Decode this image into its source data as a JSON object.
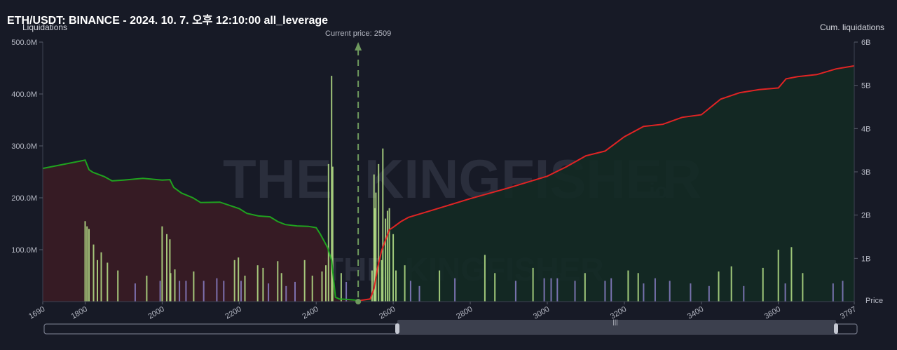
{
  "title": "ETH/USDT: BINANCE - 2024. 10. 7. 오후 12:10:00 all_leverage",
  "chart_data": {
    "type": "bar",
    "title": "ETH/USDT: BINANCE - 2024. 10. 7. 오후 12:10:00 all_leverage",
    "ylabel_left": "Liquidations",
    "ylabel_right": "Cum. liquidations",
    "xlabel": "Price",
    "current_price_label": "Current price: 2509",
    "current_price": 2509,
    "xlim": [
      1690,
      3797
    ],
    "ylim_left": [
      0,
      500000000
    ],
    "ylim_right": [
      0,
      6000000000
    ],
    "x_ticks": [
      "1690",
      "1800",
      "2000",
      "2200",
      "2400",
      "2600",
      "2800",
      "3000",
      "3200",
      "3400",
      "3600",
      "3797"
    ],
    "y_ticks_left": [
      "100.0M",
      "200.0M",
      "300.0M",
      "400.0M",
      "500.0M"
    ],
    "y_ticks_right": [
      "1B",
      "2B",
      "3B",
      "4B",
      "5B",
      "6B"
    ],
    "watermark": "THE KINGFISHER.io",
    "colors": {
      "short_cum": "#e02424",
      "long_cum": "#1fa31f",
      "long_fill": "#3a1c25",
      "short_fill": "#132a23",
      "bars_high": "#b9e48a",
      "bars_low": "#8a7fc7",
      "current": "#6f9a5e"
    },
    "series": [
      {
        "name": "long_cum",
        "x": [
          1690,
          1800,
          1810,
          1820,
          1850,
          1870,
          1900,
          1950,
          2000,
          2020,
          2030,
          2050,
          2080,
          2100,
          2150,
          2200,
          2220,
          2250,
          2280,
          2300,
          2320,
          2350,
          2380,
          2400,
          2410,
          2420,
          2430,
          2440,
          2450,
          2460,
          2480,
          2509
        ],
        "y": [
          3.08,
          3.27,
          3.05,
          2.99,
          2.89,
          2.79,
          2.81,
          2.85,
          2.81,
          2.82,
          2.64,
          2.51,
          2.4,
          2.29,
          2.3,
          2.15,
          2.04,
          1.98,
          1.96,
          1.85,
          1.78,
          1.75,
          1.74,
          1.71,
          1.57,
          1.41,
          1.24,
          0.95,
          0.1,
          0.06,
          0.05,
          0.03
        ]
      },
      {
        "name": "short_cum",
        "x": [
          2509,
          2540,
          2550,
          2560,
          2570,
          2580,
          2590,
          2600,
          2620,
          2640,
          2700,
          2800,
          2900,
          3000,
          3050,
          3100,
          3150,
          3200,
          3250,
          3300,
          3350,
          3400,
          3450,
          3500,
          3550,
          3600,
          3620,
          3650,
          3700,
          3750,
          3797
        ],
        "y": [
          0.02,
          0.06,
          0.3,
          0.8,
          1.18,
          1.42,
          1.66,
          1.72,
          1.85,
          1.95,
          2.11,
          2.38,
          2.63,
          2.9,
          3.12,
          3.37,
          3.48,
          3.81,
          4.05,
          4.1,
          4.26,
          4.32,
          4.68,
          4.83,
          4.9,
          4.94,
          5.15,
          5.2,
          5.25,
          5.38,
          5.45
        ]
      }
    ],
    "bars": {
      "x": [
        1800,
        1805,
        1810,
        1822,
        1832,
        1842,
        1858,
        1885,
        1930,
        1960,
        1995,
        2000,
        2012,
        2020,
        2022,
        2033,
        2045,
        2062,
        2082,
        2108,
        2142,
        2160,
        2188,
        2198,
        2205,
        2215,
        2248,
        2262,
        2276,
        2300,
        2310,
        2322,
        2345,
        2370,
        2390,
        2415,
        2425,
        2432,
        2440,
        2443,
        2465,
        2478,
        2545,
        2550,
        2552,
        2555,
        2562,
        2570,
        2573,
        2580,
        2585,
        2590,
        2600,
        2607,
        2630,
        2645,
        2668,
        2720,
        2760,
        2838,
        2864,
        2918,
        2963,
        2992,
        3010,
        3026,
        3072,
        3098,
        3150,
        3166,
        3210,
        3236,
        3250,
        3280,
        3318,
        3372,
        3420,
        3445,
        3478,
        3510,
        3560,
        3600,
        3618,
        3634,
        3663,
        3742,
        3767
      ],
      "y": [
        155,
        145,
        140,
        110,
        80,
        95,
        75,
        60,
        35,
        50,
        40,
        145,
        130,
        120,
        55,
        62,
        40,
        40,
        58,
        40,
        45,
        40,
        80,
        85,
        40,
        50,
        70,
        65,
        35,
        78,
        55,
        30,
        38,
        80,
        50,
        58,
        70,
        265,
        435,
        260,
        55,
        38,
        60,
        245,
        180,
        210,
        265,
        80,
        295,
        160,
        175,
        180,
        130,
        60,
        70,
        40,
        30,
        60,
        45,
        90,
        55,
        40,
        65,
        45,
        45,
        45,
        40,
        55,
        40,
        45,
        60,
        55,
        35,
        45,
        40,
        35,
        30,
        58,
        68,
        30,
        65,
        100,
        35,
        105,
        55,
        35,
        40
      ]
    }
  }
}
